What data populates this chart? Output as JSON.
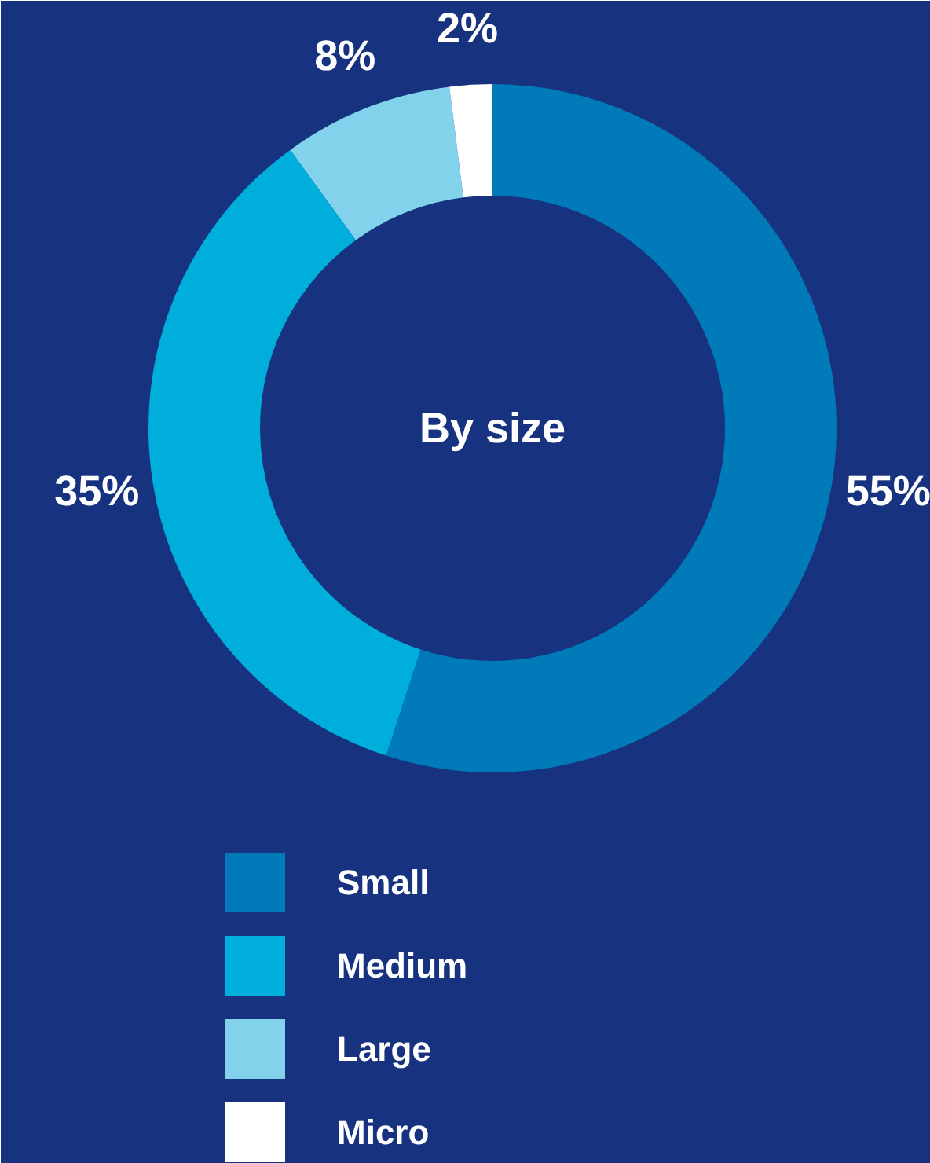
{
  "chart_data": {
    "type": "donut",
    "title": "By size",
    "categories": [
      "Small",
      "Medium",
      "Large",
      "Micro"
    ],
    "values": [
      55,
      35,
      8,
      2
    ],
    "value_labels": [
      "55%",
      "35%",
      "8%",
      "2%"
    ],
    "colors": [
      "#007ab8",
      "#00aedc",
      "#82d2ec",
      "#ffffff"
    ],
    "legend": "bottom"
  }
}
